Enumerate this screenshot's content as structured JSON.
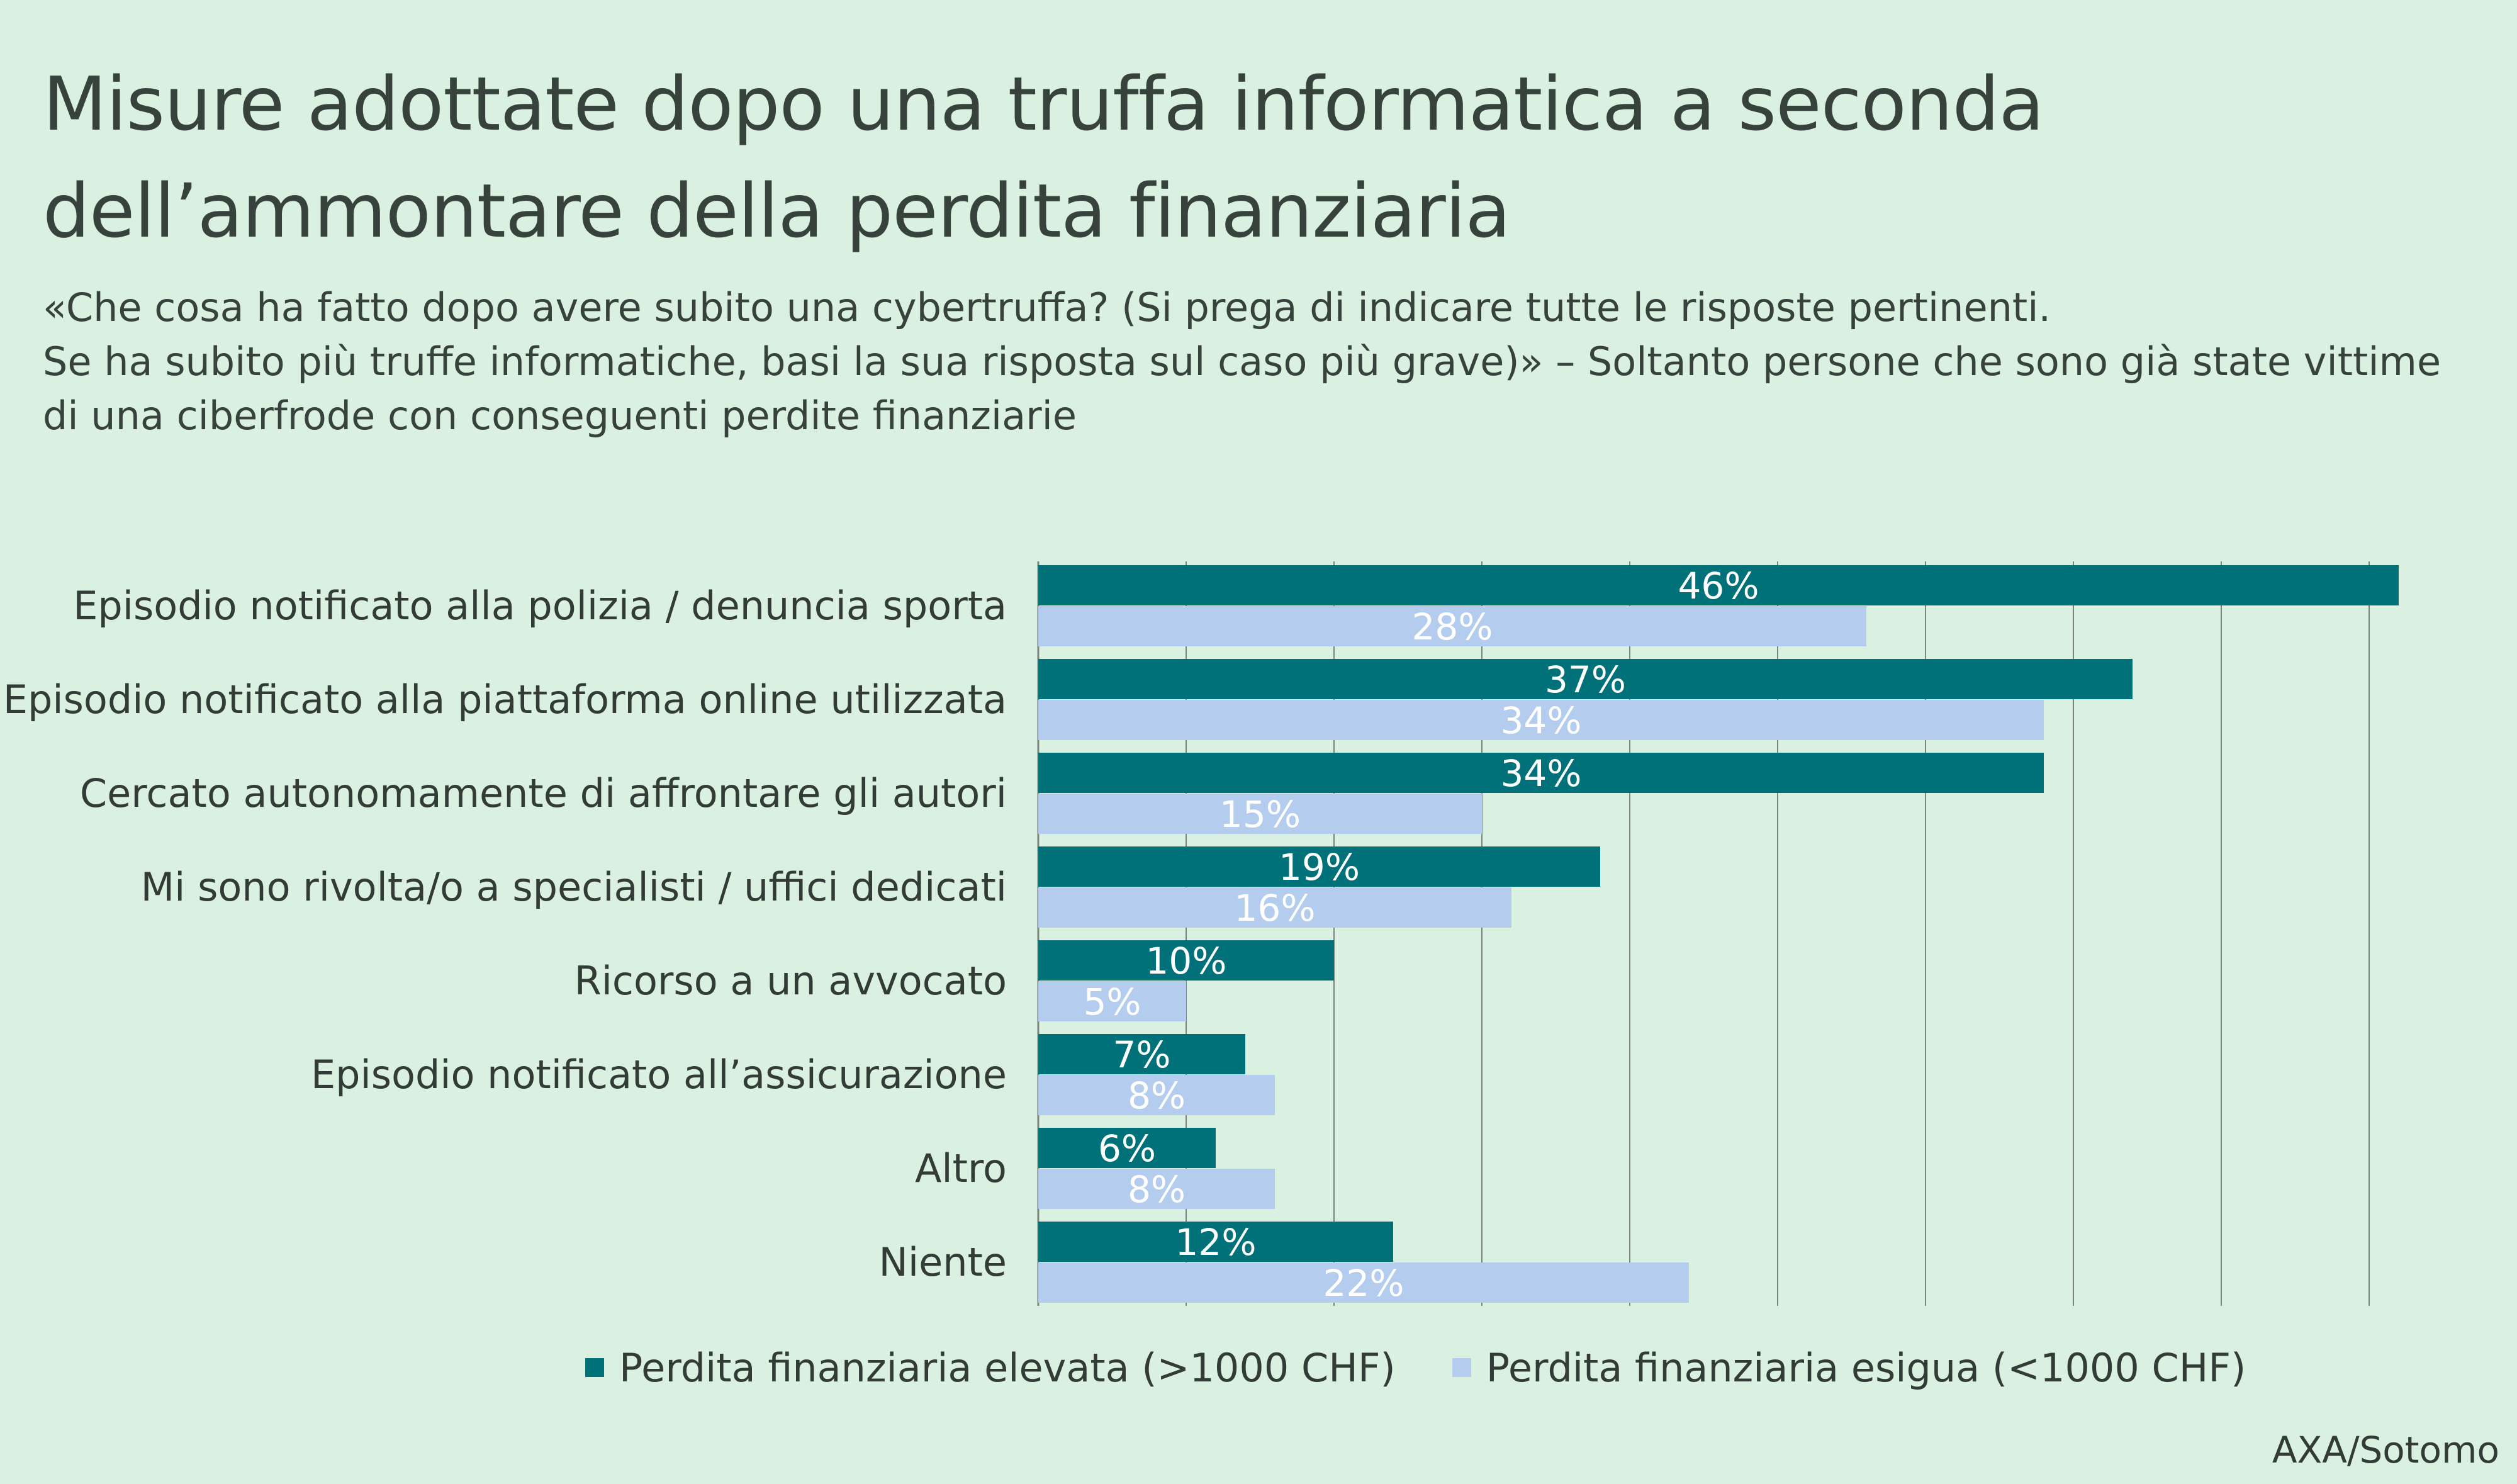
{
  "title_line1": "Misure adottate dopo una truffa informatica a seconda",
  "title_line2": "dell’ammontare della perdita finanziaria",
  "subtitle_lines": [
    "«Che cosa ha fatto dopo avere subito una cybertruffa? (Si prega di indicare tutte le risposte pertinenti.",
    "Se ha subito più truffe informatiche, basi la sua risposta sul caso più grave)» – Soltanto persone che sono già state vittime",
    "di una ciberfrode con conseguenti perdite finanziarie"
  ],
  "source": "AXA/Sotomo",
  "colors": {
    "background": "#daf0e1",
    "high": "#007178",
    "low": "#b4cdee",
    "grid": "#7c867f"
  },
  "chart_data": {
    "type": "bar",
    "orientation": "horizontal",
    "categories": [
      "Episodio notificato alla polizia / denuncia sporta",
      "Episodio notificato alla piattaforma online utilizzata",
      "Cercato autonomamente di affrontare gli autori",
      "Mi sono rivolta/o a specialisti / uffici dedicati",
      "Ricorso a un avvocato",
      "Episodio notificato all’assicurazione",
      "Altro",
      "Niente"
    ],
    "series": [
      {
        "name": "Perdita finanziaria elevata (>1000 CHF)",
        "values": [
          46,
          37,
          34,
          19,
          10,
          7,
          6,
          12
        ]
      },
      {
        "name": "Perdita finanziaria esigua (<1000 CHF)",
        "values": [
          28,
          34,
          15,
          16,
          5,
          8,
          8,
          22
        ]
      }
    ],
    "value_labels_high": [
      "46%",
      "37%",
      "34%",
      "19%",
      "10%",
      "7%",
      "6%",
      "12%"
    ],
    "value_labels_low": [
      "28%",
      "34%",
      "15%",
      "16%",
      "5%",
      "8%",
      "8%",
      "22%"
    ],
    "xlim": [
      0,
      50
    ],
    "grid_step": 5,
    "grid": true,
    "legend_position": "bottom"
  }
}
